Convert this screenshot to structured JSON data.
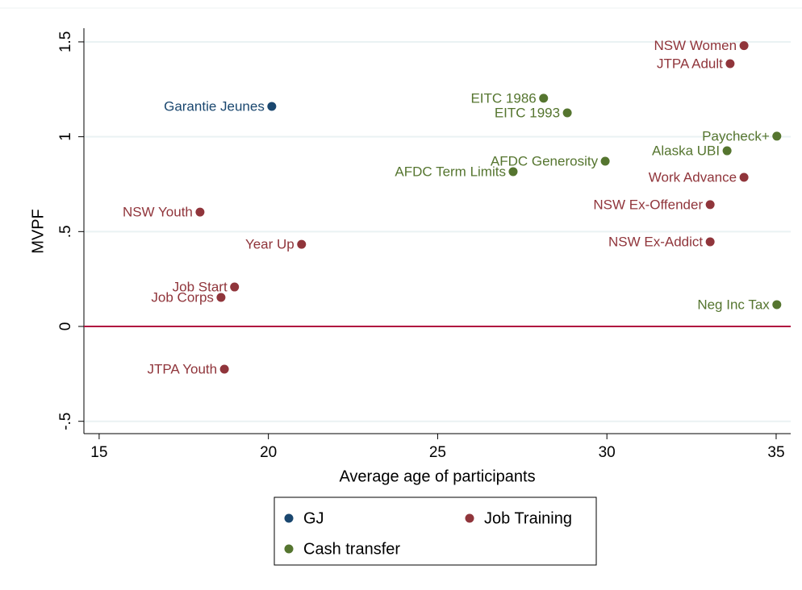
{
  "chart_data": {
    "type": "scatter",
    "x_label": "Average age of participants",
    "y_label": "MVPF",
    "xlim": [
      14.55,
      35.43
    ],
    "ylim": [
      -0.565,
      1.572
    ],
    "xticks": [
      15,
      20,
      25,
      30,
      35
    ],
    "yticks": [
      {
        "value": -0.5,
        "label": "-.5"
      },
      0,
      {
        "value": 0.5,
        "label": ".5"
      },
      1,
      1.5
    ],
    "grid": true,
    "legend": "bottom",
    "reference_line": {
      "value": 0,
      "color": "#b0103f"
    },
    "series": [
      {
        "name": "GJ",
        "color": "#1a476f",
        "x": [
          20.1
        ],
        "values": [
          1.16
        ],
        "labels": [
          "Garantie Jeunes"
        ]
      },
      {
        "name": "Job Training",
        "color": "#90353b",
        "x": [
          34.05,
          33.64,
          34.05,
          33.05,
          33.05,
          17.98,
          20.98,
          19.0,
          18.6,
          18.7
        ],
        "values": [
          1.48,
          1.385,
          0.786,
          0.642,
          0.446,
          0.603,
          0.433,
          0.208,
          0.153,
          -0.225
        ],
        "labels": [
          "NSW Women",
          "JTPA Adult",
          "Work Advance",
          "NSW Ex-Offender",
          "NSW Ex-Addict",
          "NSW Youth",
          "Year Up",
          "Job Start",
          "Job Corps",
          "JTPA Youth"
        ]
      },
      {
        "name": "Cash transfer",
        "color": "#55752f",
        "x": [
          28.13,
          28.83,
          35.02,
          33.55,
          29.95,
          27.23,
          35.02
        ],
        "values": [
          1.203,
          1.126,
          1.003,
          0.926,
          0.871,
          0.816,
          0.115
        ],
        "labels": [
          "EITC 1986",
          "EITC 1993",
          "Paycheck+",
          "Alaska UBI",
          "AFDC Generosity",
          "AFDC Term Limits",
          "Neg Inc Tax"
        ]
      }
    ]
  }
}
